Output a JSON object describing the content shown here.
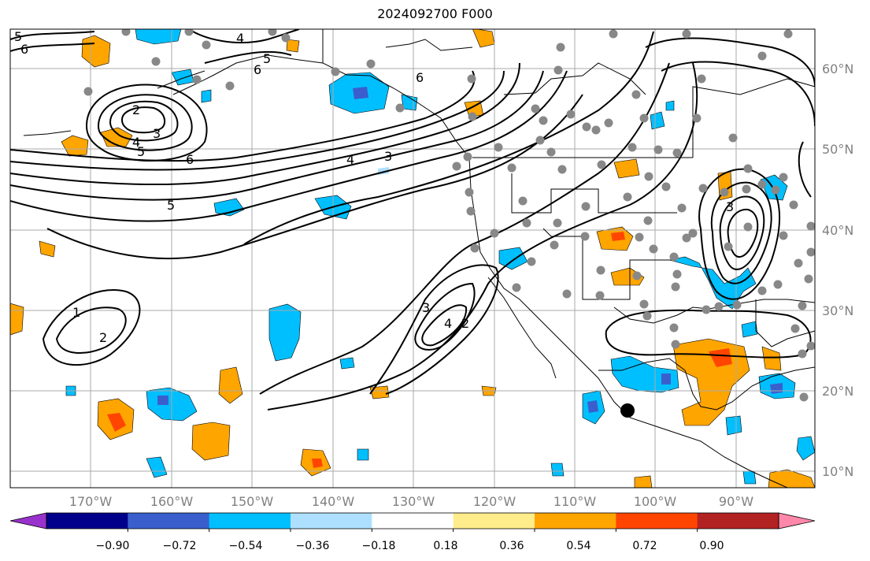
{
  "title": "2024092700 F000",
  "lat_labels": [
    "60°N",
    "50°N",
    "40°N",
    "30°N",
    "20°N",
    "10°N"
  ],
  "lon_labels": [
    "170°W",
    "160°W",
    "150°W",
    "140°W",
    "130°W",
    "120°W",
    "110°W",
    "100°W",
    "90°W"
  ],
  "colorbar": {
    "tick_labels": [
      "−0.90",
      "−0.72",
      "−0.54",
      "−0.36",
      "−0.18",
      "0.18",
      "0.36",
      "0.54",
      "0.72",
      "0.90"
    ],
    "colors": [
      "#9932CC",
      "#00008B",
      "#3A5FCD",
      "#00BFFF",
      "#ADE0FF",
      "#FFFFFF",
      "#FFEC8B",
      "#FFA500",
      "#FF4500",
      "#B22222",
      "#FF88AA"
    ]
  },
  "contour_labels": [
    "5",
    "6",
    "4",
    "6",
    "5",
    "6",
    "2",
    "3",
    "4",
    "5",
    "6",
    "4",
    "3",
    "5",
    "1",
    "2",
    "3",
    "4",
    "2",
    "3"
  ]
}
